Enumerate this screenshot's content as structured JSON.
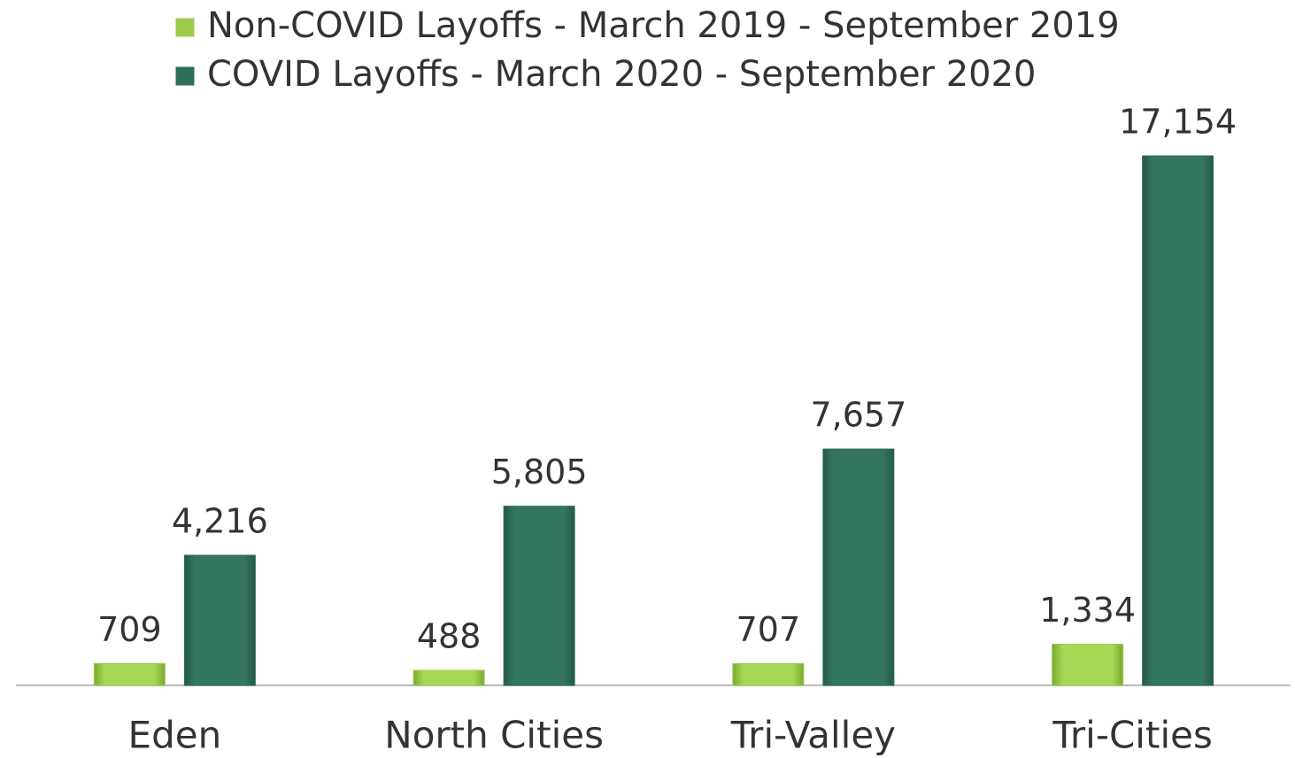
{
  "chart_data": {
    "type": "bar",
    "categories": [
      "Eden",
      "North Cities",
      "Tri-Valley",
      "Tri-Cities"
    ],
    "series": [
      {
        "name": "Non-COVID Layoffs - March 2019 - September 2019",
        "color": "#9ccc4a",
        "values": [
          709,
          488,
          707,
          1334
        ],
        "value_labels": [
          "709",
          "488",
          "707",
          "1,334"
        ]
      },
      {
        "name": "COVID Layoffs - March 2020 - September 2020",
        "color": "#2f6e5a",
        "values": [
          4216,
          5805,
          7657,
          17154
        ],
        "value_labels": [
          "4,216",
          "5,805",
          "7,657",
          "17,154"
        ]
      }
    ],
    "ylim": [
      0,
      18000
    ]
  }
}
